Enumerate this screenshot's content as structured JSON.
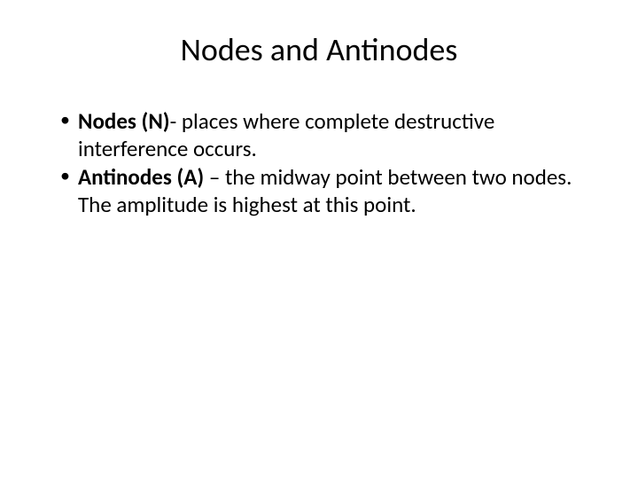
{
  "title": "Nodes and Antinodes",
  "bullets": [
    {
      "term": "Nodes (N)",
      "sep": "- ",
      "definition": "places where complete destructive interference occurs."
    },
    {
      "term": "Antinodes (A) ",
      "sep": "– ",
      "definition": "the midway point between two nodes. The amplitude is highest at this point."
    }
  ],
  "colors": {
    "background": "#ffffff",
    "text": "#000000"
  },
  "typography": {
    "title_fontsize": 36,
    "body_fontsize": 25,
    "font_family": "Calibri"
  }
}
